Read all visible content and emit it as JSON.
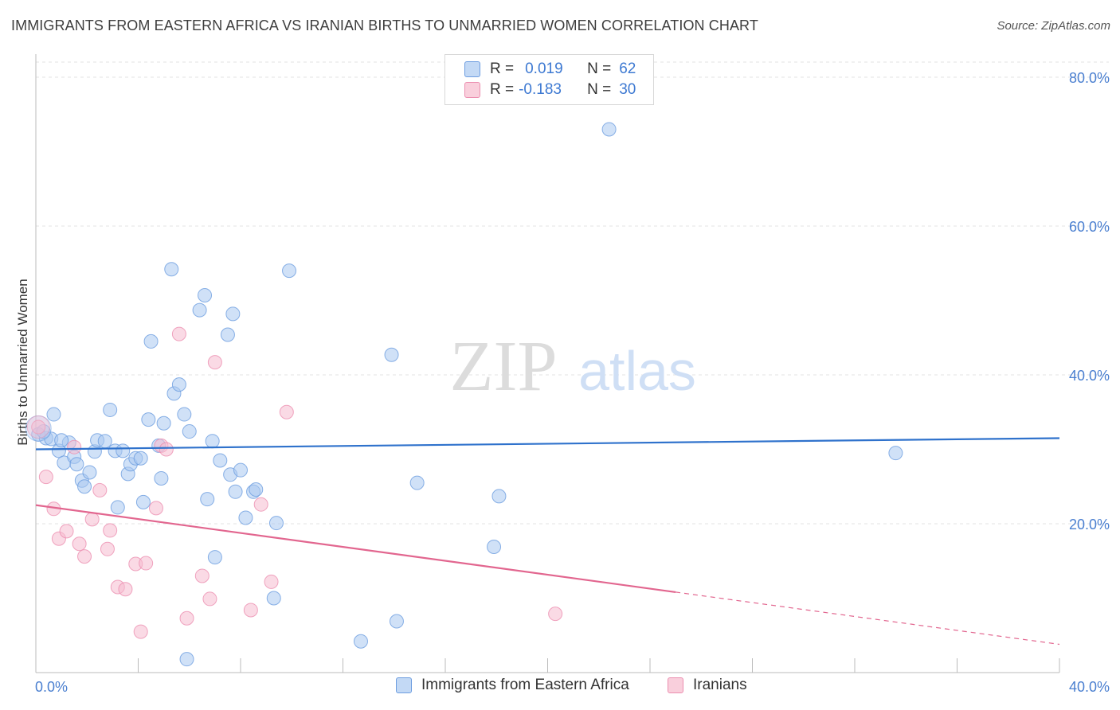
{
  "title": "IMMIGRANTS FROM EASTERN AFRICA VS IRANIAN BIRTHS TO UNMARRIED WOMEN CORRELATION CHART",
  "source": "Source: ZipAtlas.com",
  "watermark": {
    "zip": "ZIP",
    "atlas": "atlas"
  },
  "legend": {
    "series1": {
      "r_label": "R =",
      "r_value": "0.019",
      "n_label": "N =",
      "n_value": "62"
    },
    "series2": {
      "r_label": "R =",
      "r_value": "-0.183",
      "n_label": "N =",
      "n_value": "30"
    }
  },
  "colors": {
    "blue_fill": "#a9c8f0",
    "blue_stroke": "#6d9de0",
    "blue_line": "#2f72cc",
    "pink_fill": "#f6bcd0",
    "pink_stroke": "#ec8fb0",
    "pink_line": "#e2668f",
    "grid": "#e3e3e3",
    "axis_text": "#4a7fd0"
  },
  "chart_data": {
    "type": "scatter",
    "xlabel": "",
    "ylabel": "Births to Unmarried Women",
    "xlim": [
      0,
      40
    ],
    "ylim": [
      0,
      80
    ],
    "y_ticks": [
      {
        "value": 20,
        "label": "20.0%"
      },
      {
        "value": 40,
        "label": "40.0%"
      },
      {
        "value": 60,
        "label": "60.0%"
      },
      {
        "value": 80,
        "label": "80.0%"
      }
    ],
    "x_tick_labels": [
      {
        "value": 0,
        "label": "0.0%"
      },
      {
        "value": 40,
        "label": "40.0%"
      }
    ],
    "x_minor_ticks": [
      0,
      4,
      8,
      12,
      16,
      20,
      24,
      28,
      32,
      36,
      40
    ],
    "grid": true,
    "series": [
      {
        "name": "Immigrants from Eastern Africa",
        "color": "#a9c8f0",
        "trend": {
          "x0": 0,
          "y0": 30.0,
          "x1": 40,
          "y1": 31.5,
          "dashed_from": null
        },
        "points": [
          [
            0.1,
            32.0
          ],
          [
            0.4,
            31.5
          ],
          [
            0.6,
            31.4
          ],
          [
            0.7,
            34.7
          ],
          [
            0.9,
            29.8
          ],
          [
            1.1,
            28.2
          ],
          [
            1.3,
            30.9
          ],
          [
            1.5,
            29.0
          ],
          [
            1.6,
            28.0
          ],
          [
            1.8,
            25.8
          ],
          [
            1.9,
            25.0
          ],
          [
            2.1,
            26.9
          ],
          [
            2.3,
            29.7
          ],
          [
            2.4,
            31.2
          ],
          [
            2.7,
            31.1
          ],
          [
            2.9,
            35.3
          ],
          [
            3.1,
            29.8
          ],
          [
            3.2,
            22.2
          ],
          [
            3.4,
            29.8
          ],
          [
            3.6,
            26.7
          ],
          [
            3.7,
            28.0
          ],
          [
            3.9,
            28.8
          ],
          [
            4.1,
            28.8
          ],
          [
            4.2,
            22.9
          ],
          [
            4.4,
            34.0
          ],
          [
            4.5,
            44.5
          ],
          [
            4.8,
            30.5
          ],
          [
            4.9,
            26.1
          ],
          [
            5.0,
            33.5
          ],
          [
            5.3,
            54.2
          ],
          [
            5.4,
            37.5
          ],
          [
            5.6,
            38.7
          ],
          [
            5.8,
            34.7
          ],
          [
            6.0,
            32.4
          ],
          [
            6.4,
            48.7
          ],
          [
            6.6,
            50.7
          ],
          [
            6.7,
            23.3
          ],
          [
            6.9,
            31.1
          ],
          [
            7.0,
            15.5
          ],
          [
            7.2,
            28.5
          ],
          [
            7.5,
            45.4
          ],
          [
            7.6,
            26.6
          ],
          [
            7.7,
            48.2
          ],
          [
            7.8,
            24.3
          ],
          [
            8.0,
            27.2
          ],
          [
            8.2,
            20.8
          ],
          [
            8.5,
            24.3
          ],
          [
            8.6,
            24.6
          ],
          [
            9.3,
            10.0
          ],
          [
            9.4,
            20.1
          ],
          [
            9.9,
            54.0
          ],
          [
            5.9,
            1.8
          ],
          [
            12.7,
            4.2
          ],
          [
            13.9,
            42.7
          ],
          [
            14.1,
            6.9
          ],
          [
            14.9,
            25.5
          ],
          [
            17.9,
            16.9
          ],
          [
            18.1,
            23.7
          ],
          [
            22.4,
            73.0
          ],
          [
            33.6,
            29.5
          ],
          [
            0.3,
            32.4
          ],
          [
            1.0,
            31.2
          ]
        ]
      },
      {
        "name": "Iranians",
        "color": "#f6bcd0",
        "trend": {
          "x0": 0,
          "y0": 22.5,
          "x1": 40,
          "y1": 3.8,
          "dashed_from": 25.0
        },
        "points": [
          [
            0.1,
            33.0
          ],
          [
            0.4,
            26.3
          ],
          [
            0.7,
            22.0
          ],
          [
            0.9,
            18.0
          ],
          [
            1.2,
            19.0
          ],
          [
            1.5,
            30.3
          ],
          [
            1.7,
            17.3
          ],
          [
            1.9,
            15.6
          ],
          [
            2.2,
            20.6
          ],
          [
            2.5,
            24.5
          ],
          [
            2.8,
            16.6
          ],
          [
            2.9,
            19.1
          ],
          [
            3.2,
            11.5
          ],
          [
            3.5,
            11.2
          ],
          [
            3.9,
            14.6
          ],
          [
            4.1,
            5.5
          ],
          [
            4.3,
            14.7
          ],
          [
            4.7,
            22.1
          ],
          [
            4.9,
            30.5
          ],
          [
            5.1,
            30.0
          ],
          [
            5.6,
            45.5
          ],
          [
            5.9,
            7.3
          ],
          [
            6.5,
            13.0
          ],
          [
            6.8,
            9.9
          ],
          [
            7.0,
            41.7
          ],
          [
            8.4,
            8.4
          ],
          [
            8.8,
            22.6
          ],
          [
            9.2,
            12.2
          ],
          [
            9.8,
            35.0
          ],
          [
            20.3,
            7.9
          ]
        ]
      }
    ]
  }
}
